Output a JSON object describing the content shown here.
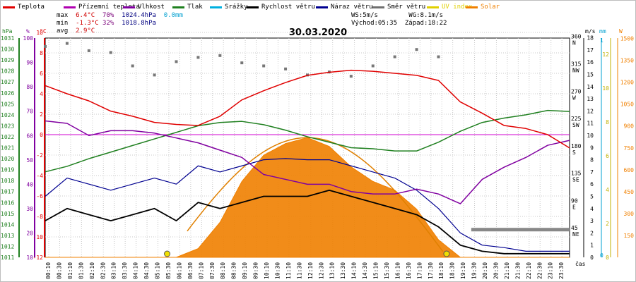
{
  "legend": [
    {
      "key": "temp",
      "label": "Teplota",
      "color": "#e00000"
    },
    {
      "key": "dew",
      "label": "Přízemní teplota",
      "color": "#b000b0"
    },
    {
      "key": "rh",
      "label": "Vlhkost",
      "color": "#8000a0"
    },
    {
      "key": "press",
      "label": "Tlak",
      "color": "#208020"
    },
    {
      "key": "rain",
      "label": "Srážky",
      "color": "#00b0e0"
    },
    {
      "key": "wspd",
      "label": "Rychlost větru",
      "color": "#000000"
    },
    {
      "key": "gust",
      "label": "Náraz větru",
      "color": "#000090"
    },
    {
      "key": "dir",
      "label": "Směr větru",
      "color": "#707070"
    },
    {
      "key": "uv",
      "label": "UV index",
      "color": "#e0d000"
    },
    {
      "key": "solar",
      "label": "Solar",
      "color": "#f08000"
    }
  ],
  "stats": {
    "max": {
      "label": "max",
      "temp": "6.4°C",
      "rh": "70%",
      "press": "1024.4hPa",
      "rain": "0.0mm"
    },
    "min": {
      "label": "min",
      "temp": "-1.3°C",
      "rh": "32%",
      "press": "1018.8hPa"
    },
    "avg": {
      "label": "avg",
      "temp": "2.9°C"
    }
  },
  "wind_info": {
    "ws": "WS:5m/s",
    "wg": "WG:8.1m/s",
    "sunrise": "Východ:05:35",
    "sunset": "Západ:18:22"
  },
  "date": "30.03.2020",
  "axes": {
    "hpa_unit": "hPa",
    "pct_unit": "%",
    "c_unit": "°C",
    "ms_unit": "m/s",
    "mm_unit": "mm",
    "w_unit": "W",
    "x_unit": "čas",
    "hpa_ticks": [
      "1031",
      "1030",
      "1029",
      "1028",
      "1027",
      "1026",
      "1025",
      "1024",
      "1023",
      "1022",
      "1021",
      "1020",
      "1019",
      "1018",
      "1017",
      "1016",
      "1015",
      "1014",
      "1013",
      "1012",
      "1011"
    ],
    "pct_ticks": [
      "100",
      "90",
      "80",
      "70",
      "60",
      "50",
      "40",
      "30",
      "20",
      "10"
    ],
    "c_ticks": [
      "10",
      "8",
      "6",
      "4",
      "2",
      "0",
      "-2",
      "-4",
      "-6",
      "-8",
      "-10",
      "-12"
    ],
    "dir_ticks": [
      [
        "360",
        "N"
      ],
      [
        "315",
        "NW"
      ],
      [
        "270",
        "W"
      ],
      [
        "225",
        "SW"
      ],
      [
        "180",
        "S"
      ],
      [
        "135",
        "SE"
      ],
      [
        "90",
        "E"
      ],
      [
        "45",
        "NE"
      ]
    ],
    "ms_ticks": [
      "18",
      "17",
      "16",
      "15",
      "14",
      "13",
      "12",
      "11",
      "10",
      "9",
      "8",
      "7",
      "6",
      "5",
      "4",
      "3",
      "2",
      "1",
      "0"
    ],
    "mm_ticks": [
      "1",
      "0"
    ],
    "uv_ticks": [
      "12",
      "10",
      "8",
      "6",
      "4",
      "2",
      "0"
    ],
    "w_ticks": [
      "1500",
      "1350",
      "1200",
      "1050",
      "900",
      "750",
      "600",
      "450",
      "300",
      "150"
    ],
    "time_ticks": [
      "00:10",
      "00:30",
      "01:10",
      "01:30",
      "02:10",
      "02:30",
      "03:10",
      "03:30",
      "04:10",
      "04:30",
      "05:10",
      "05:30",
      "06:10",
      "06:30",
      "07:10",
      "07:30",
      "08:10",
      "08:30",
      "09:10",
      "09:30",
      "10:10",
      "10:30",
      "11:10",
      "11:30",
      "12:10",
      "12:30",
      "13:10",
      "13:30",
      "14:10",
      "14:30",
      "15:10",
      "15:30",
      "16:10",
      "16:30",
      "17:10",
      "17:30",
      "18:10",
      "18:30",
      "19:10",
      "19:30",
      "20:10",
      "20:30",
      "21:10",
      "21:30",
      "22:10",
      "22:30",
      "23:10",
      "23:30"
    ]
  },
  "chart_data": {
    "type": "line",
    "title": "30.03.2020",
    "xlabel": "čas",
    "x_hours": [
      0,
      1,
      2,
      3,
      4,
      5,
      6,
      7,
      8,
      9,
      10,
      11,
      12,
      13,
      14,
      15,
      16,
      17,
      18,
      19,
      20,
      21,
      22,
      23,
      24
    ],
    "series": [
      {
        "name": "Teplota",
        "unit": "°C",
        "values": [
          4.8,
          4.0,
          3.3,
          2.3,
          1.8,
          1.2,
          1.0,
          0.9,
          1.8,
          3.4,
          4.3,
          5.1,
          5.8,
          6.1,
          6.3,
          6.2,
          6.0,
          5.8,
          5.3,
          3.2,
          2.1,
          0.9,
          0.6,
          0.0,
          -1.3
        ]
      },
      {
        "name": "Vlhkost",
        "unit": "%",
        "values": [
          66,
          65,
          60,
          62,
          62,
          61,
          59,
          57,
          54,
          51,
          44,
          42,
          40,
          40,
          37,
          36,
          36,
          38,
          36,
          32,
          42,
          47,
          51,
          56,
          58
        ]
      },
      {
        "name": "Tlak",
        "unit": "hPa",
        "values": [
          1018.8,
          1019.3,
          1020.0,
          1020.6,
          1021.2,
          1021.8,
          1022.4,
          1023.0,
          1023.3,
          1023.4,
          1023.1,
          1022.6,
          1022.0,
          1021.5,
          1021.0,
          1020.9,
          1020.7,
          1020.7,
          1021.5,
          1022.5,
          1023.3,
          1023.7,
          1024.0,
          1024.4,
          1024.3
        ]
      },
      {
        "name": "Rychlost větru",
        "unit": "m/s",
        "values": [
          3.0,
          4.0,
          3.5,
          3.0,
          3.5,
          4.0,
          3.0,
          4.5,
          4.0,
          4.5,
          5.0,
          5.0,
          5.0,
          5.5,
          5.0,
          4.5,
          4.0,
          3.5,
          2.5,
          1.0,
          0.5,
          0.3,
          0.3,
          0.3,
          0.3
        ]
      },
      {
        "name": "Náraz větru",
        "unit": "m/s",
        "values": [
          5.0,
          6.5,
          6.0,
          5.5,
          6.0,
          6.5,
          6.0,
          7.5,
          7.0,
          7.5,
          8.0,
          8.1,
          8.0,
          8.0,
          7.5,
          7.0,
          6.5,
          5.5,
          4.0,
          2.0,
          1.0,
          0.8,
          0.5,
          0.5,
          0.5
        ]
      },
      {
        "name": "Směr větru",
        "unit": "°",
        "values": [
          347,
          352,
          340,
          337,
          315,
          300,
          322,
          329,
          332,
          320,
          315,
          310,
          300,
          305,
          298,
          315,
          330,
          342,
          330,
          null,
          null,
          null,
          null,
          null,
          null
        ]
      },
      {
        "name": "Solar",
        "unit": "W",
        "values": [
          0,
          0,
          0,
          0,
          0,
          0,
          0,
          60,
          240,
          520,
          700,
          780,
          820,
          760,
          620,
          520,
          460,
          330,
          120,
          0,
          0,
          0,
          0,
          0,
          0
        ]
      },
      {
        "name": "Srážky",
        "unit": "mm",
        "values": [
          0,
          0,
          0,
          0,
          0,
          0,
          0,
          0,
          0,
          0,
          0,
          0,
          0,
          0,
          0,
          0,
          0,
          0,
          0,
          0,
          0,
          0,
          0,
          0,
          0
        ]
      }
    ],
    "ylim_temp": [
      -12,
      10
    ],
    "ylim_pressure": [
      1011,
      1031
    ],
    "ylim_wind": [
      0,
      18
    ],
    "ylim_solar": [
      0,
      1500
    ],
    "grid": true,
    "legend_position": "top"
  }
}
